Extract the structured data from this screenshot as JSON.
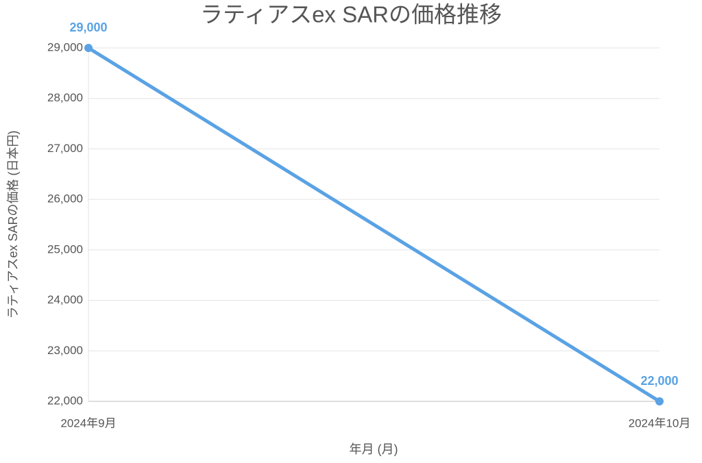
{
  "chart_data": {
    "type": "line",
    "title": "ラティアスex SARの価格推移",
    "x_label": "年月 (月)",
    "y_label": "ラティアスex SARの価格 (日本円)",
    "categories": [
      "2024年9月",
      "2024年10月"
    ],
    "values": [
      29000,
      22000
    ],
    "value_labels": [
      "29,000",
      "22,000"
    ],
    "color": "#5aa2e4",
    "ylim": [
      22000,
      29000
    ],
    "yticks": [
      {
        "value": 22000,
        "label": "22,000"
      },
      {
        "value": 23000,
        "label": "23,000"
      },
      {
        "value": 24000,
        "label": "24,000"
      },
      {
        "value": 25000,
        "label": "25,000"
      },
      {
        "value": 26000,
        "label": "26,000"
      },
      {
        "value": 27000,
        "label": "27,000"
      },
      {
        "value": 28000,
        "label": "28,000"
      },
      {
        "value": 29000,
        "label": "29,000"
      }
    ],
    "grid": true
  }
}
